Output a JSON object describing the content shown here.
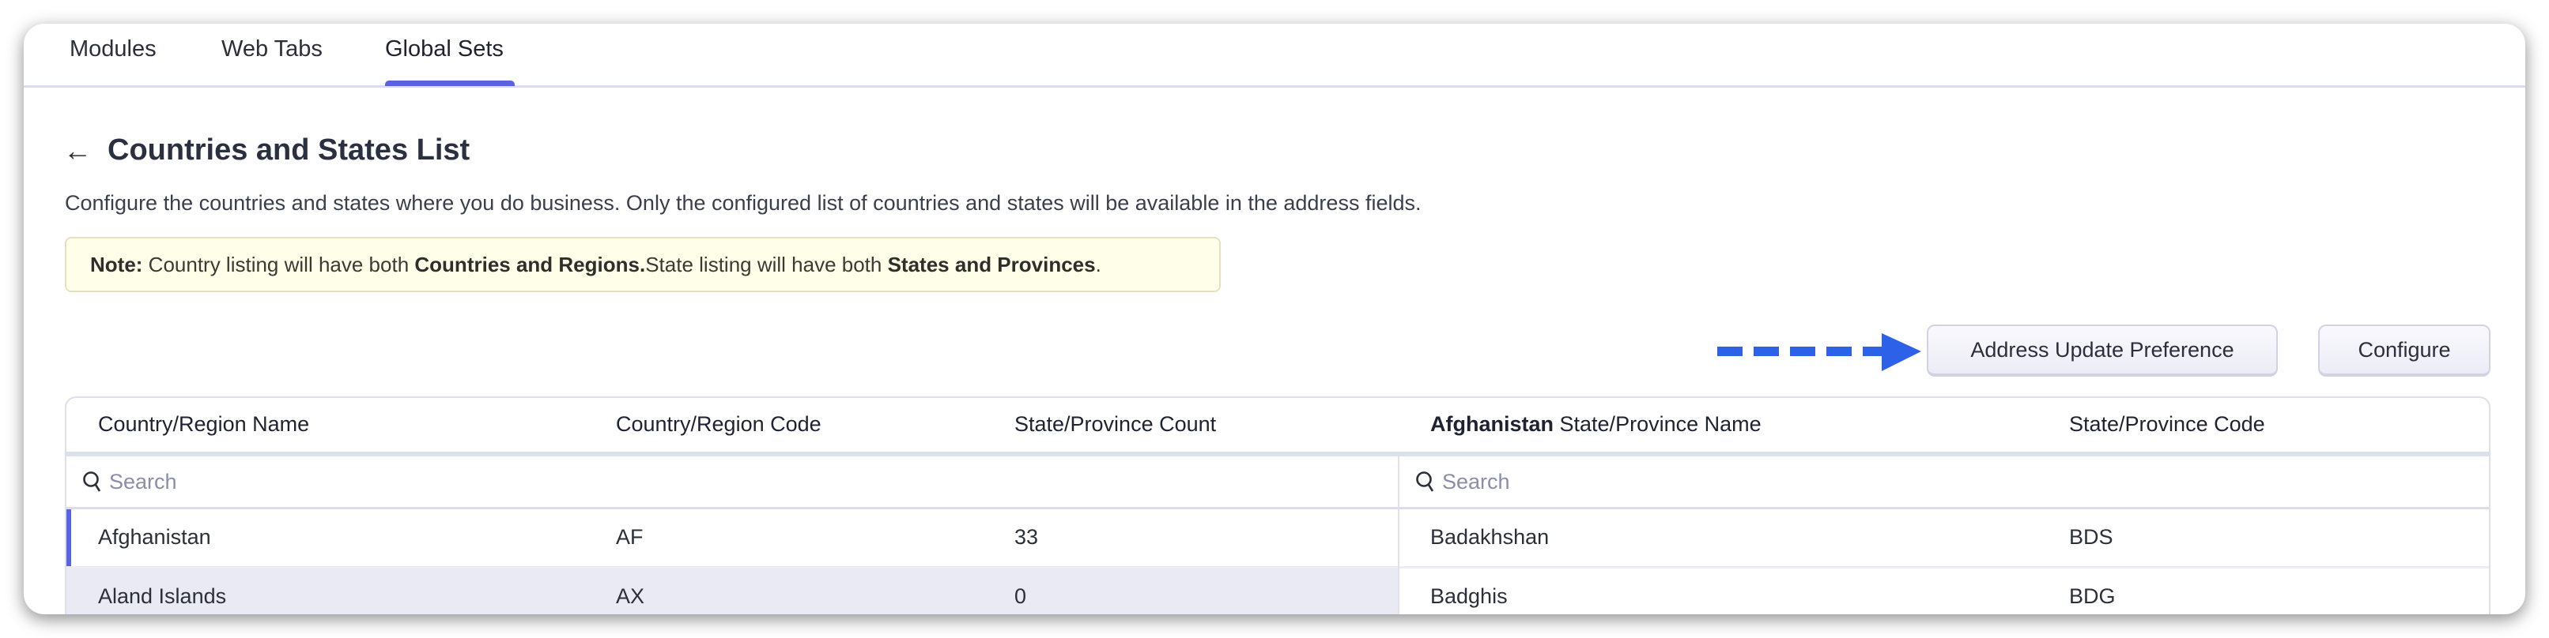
{
  "tabs": [
    {
      "label": "Modules"
    },
    {
      "label": "Web Tabs"
    },
    {
      "label": "Global Sets",
      "active": true
    }
  ],
  "page": {
    "back_icon": "arrow-left-icon",
    "title": "Countries and States List",
    "description": "Configure the countries and states where you do business. Only the configured list of countries and states will be available in the address fields.",
    "note": {
      "prefix": "Note:",
      "t1": " Country listing will have both ",
      "b1": "Countries and Regions.",
      "t2": "State listing will have both ",
      "b2": "States and Provinces",
      "t3": "."
    }
  },
  "toolbar": {
    "address_pref_label": "Address Update Preference",
    "configure_label": "Configure",
    "arrow_color": "#2d62e8"
  },
  "countries": {
    "headers": [
      "Country/Region Name",
      "Country/Region Code",
      "State/Province Count"
    ],
    "search_placeholder": "Search",
    "rows": [
      {
        "name": "Afghanistan",
        "code": "AF",
        "count": "33",
        "selected": true
      },
      {
        "name": "Aland Islands",
        "code": "AX",
        "count": "0"
      }
    ]
  },
  "states": {
    "header_country": "Afghanistan",
    "header_name": " State/Province Name",
    "header_code": "State/Province Code",
    "search_placeholder": "Search",
    "rows": [
      {
        "name": "Badakhshan",
        "code": "BDS"
      },
      {
        "name": "Badghis",
        "code": "BDG"
      }
    ]
  },
  "colors": {
    "accent": "#5a62e4",
    "row_highlight": "#e9eaf4",
    "note_bg": "#fefee9"
  }
}
